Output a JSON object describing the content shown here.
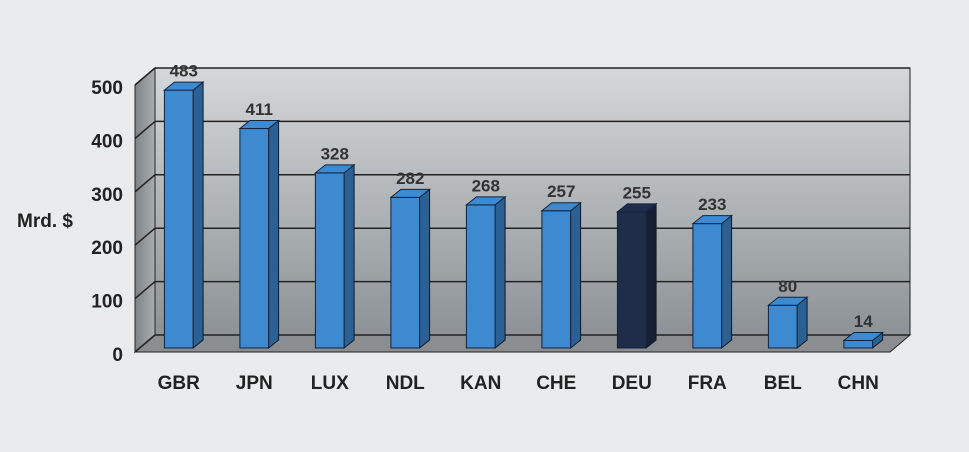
{
  "chart_data": {
    "type": "bar3d",
    "y_label": "Mrd. $",
    "categories": [
      "GBR",
      "JPN",
      "LUX",
      "NDL",
      "KAN",
      "CHE",
      "DEU",
      "FRA",
      "BEL",
      "CHN"
    ],
    "values": [
      483,
      411,
      328,
      282,
      268,
      257,
      255,
      233,
      80,
      14
    ],
    "colors": [
      "#3d8ad0",
      "#3d8ad0",
      "#3d8ad0",
      "#3d8ad0",
      "#3d8ad0",
      "#3d8ad0",
      "#1f2d4a",
      "#3d8ad0",
      "#3d8ad0",
      "#3d8ad0"
    ],
    "ylim": [
      0,
      500
    ],
    "yticks": [
      0,
      100,
      200,
      300,
      400,
      500
    ],
    "grid": true
  }
}
